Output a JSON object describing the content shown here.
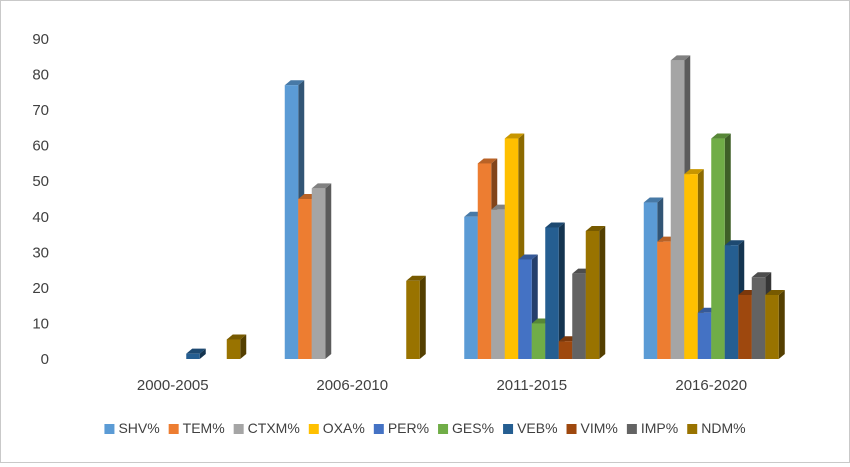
{
  "chart_data": {
    "type": "bar",
    "style": "3d-clustered-column",
    "categories": [
      "2000-2005",
      "2006-2010",
      "2011-2015",
      "2016-2020"
    ],
    "ylim": [
      0,
      90
    ],
    "yticks": [
      0,
      10,
      20,
      30,
      40,
      50,
      60,
      70,
      80,
      90
    ],
    "grid": false,
    "legend_position": "bottom",
    "series": [
      {
        "name": "SHV%",
        "color": "#5b9bd5",
        "values": [
          0,
          77,
          40,
          44
        ]
      },
      {
        "name": "TEM%",
        "color": "#ed7d31",
        "values": [
          0,
          45,
          55,
          33
        ]
      },
      {
        "name": "CTXM%",
        "color": "#a5a5a5",
        "values": [
          0,
          48,
          42,
          84
        ]
      },
      {
        "name": "OXA%",
        "color": "#ffc000",
        "values": [
          0,
          0,
          62,
          52
        ]
      },
      {
        "name": "PER%",
        "color": "#4472c4",
        "values": [
          0,
          0,
          28,
          13
        ]
      },
      {
        "name": "GES%",
        "color": "#70ad47",
        "values": [
          0,
          0,
          10,
          62
        ]
      },
      {
        "name": "VEB%",
        "color": "#255e91",
        "values": [
          1.5,
          0,
          37,
          32
        ]
      },
      {
        "name": "VIM%",
        "color": "#9e480e",
        "values": [
          0,
          0,
          5,
          18
        ]
      },
      {
        "name": "IMP%",
        "color": "#636363",
        "values": [
          0,
          0,
          24,
          23
        ]
      },
      {
        "name": "NDM%",
        "color": "#997300",
        "values": [
          5.5,
          22,
          36,
          18
        ]
      }
    ]
  }
}
